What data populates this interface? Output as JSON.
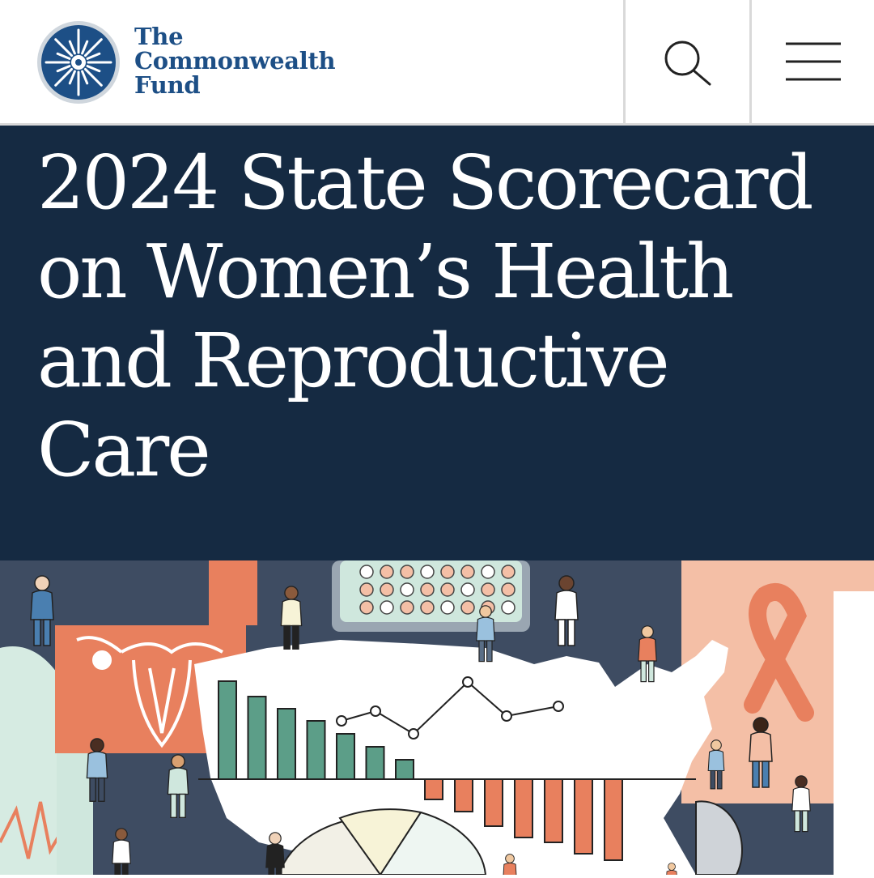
{
  "header": {
    "logo": {
      "icon": "commonwealth-star-icon",
      "lines": [
        "The",
        "Commonwealth",
        "Fund"
      ]
    },
    "search_icon": "search-icon",
    "menu_icon": "hamburger-menu-icon"
  },
  "hero": {
    "title_lines": [
      "2024 State Scorecard",
      "on Women’s Health",
      "and Reproductive",
      "Care"
    ]
  },
  "illustration": {
    "description_icon": "womens-health-illustration",
    "bars_up": [
      121,
      102,
      87,
      72,
      56,
      40,
      24
    ],
    "bars_down": [
      25,
      40,
      58,
      72,
      78,
      92,
      100
    ],
    "line_points": [
      [
        422,
        890
      ],
      [
        464,
        878
      ],
      [
        511,
        906
      ],
      [
        578,
        842
      ],
      [
        626,
        884
      ],
      [
        690,
        872
      ]
    ],
    "pill_rows": 3,
    "pill_cols": 8,
    "colors": {
      "navy": "#152a42",
      "slate": "#3e4c62",
      "coral": "#e8805e",
      "teal": "#5c9e88",
      "peach": "#f4bfa6",
      "mint": "#cfe7dd",
      "brand_blue": "#1d4f86"
    }
  }
}
